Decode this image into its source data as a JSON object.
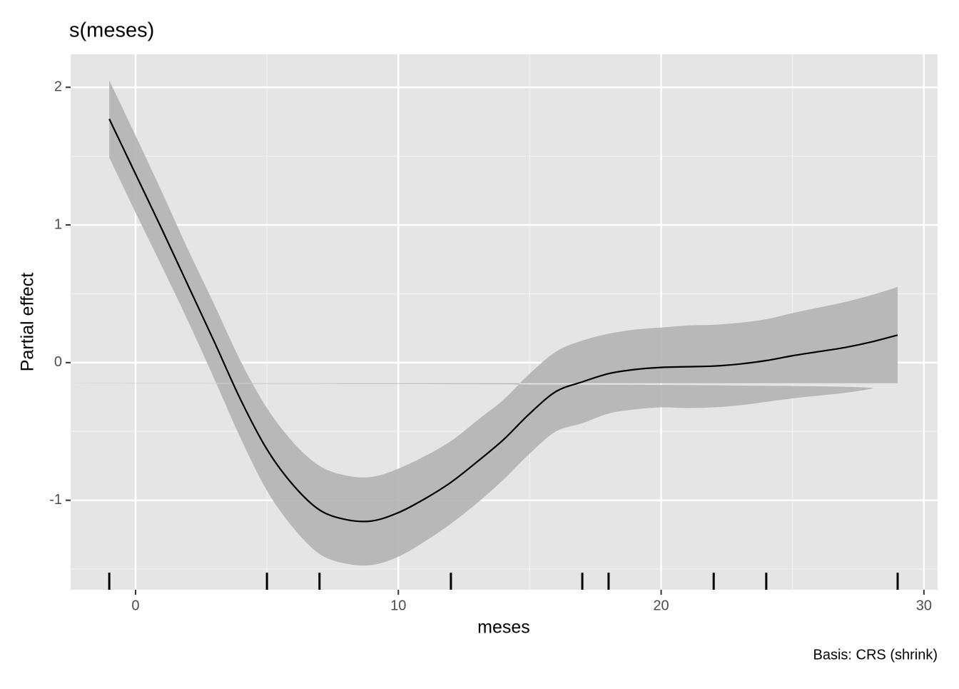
{
  "chart_data": {
    "type": "smooth",
    "title": "s(meses)",
    "xlabel": "meses",
    "ylabel": "Partial effect",
    "caption": "Basis: CRS (shrink)",
    "x": [
      -1,
      0,
      1,
      2,
      3,
      4,
      5,
      6,
      7,
      8,
      9,
      10,
      11,
      12,
      13,
      14,
      15,
      16,
      17,
      18,
      19,
      20,
      21,
      22,
      23,
      24,
      25,
      26,
      27,
      28,
      29
    ],
    "estimate": [
      1.77,
      1.37,
      0.97,
      0.56,
      0.15,
      -0.27,
      -0.63,
      -0.89,
      -1.07,
      -1.14,
      -1.15,
      -1.09,
      -0.99,
      -0.87,
      -0.72,
      -0.56,
      -0.37,
      -0.21,
      -0.14,
      -0.08,
      -0.05,
      -0.035,
      -0.03,
      -0.025,
      -0.01,
      0.015,
      0.05,
      0.08,
      0.11,
      0.15,
      0.2
    ],
    "lower": [
      1.49,
      1.09,
      0.7,
      0.3,
      -0.12,
      -0.55,
      -0.93,
      -1.2,
      -1.39,
      -1.46,
      -1.47,
      -1.41,
      -1.3,
      -1.17,
      -1.02,
      -0.85,
      -0.66,
      -0.5,
      -0.44,
      -0.37,
      -0.34,
      -0.325,
      -0.33,
      -0.325,
      -0.31,
      -0.285,
      -0.26,
      -0.24,
      -0.22,
      -0.19,
      -0.15
    ],
    "upper": [
      2.05,
      1.65,
      1.24,
      0.82,
      0.42,
      0.01,
      -0.33,
      -0.58,
      -0.75,
      -0.82,
      -0.83,
      -0.77,
      -0.68,
      -0.57,
      -0.42,
      -0.27,
      -0.08,
      0.08,
      0.16,
      0.21,
      0.24,
      0.255,
      0.27,
      0.275,
      0.29,
      0.315,
      0.36,
      0.4,
      0.44,
      0.49,
      0.55
    ],
    "rug": [
      -1,
      5,
      7,
      12,
      17,
      18,
      22,
      24,
      29
    ],
    "line_color": "#000000",
    "band_color": "#b3b3b3",
    "panel_color": "#e5e5e5",
    "xlim": [
      -2.47,
      30.52
    ],
    "ylim": [
      -1.65,
      2.24
    ],
    "xticks": [
      0,
      10,
      20,
      30
    ],
    "yticks": [
      -1,
      0,
      1,
      2
    ],
    "x_minor_ticks": [
      5,
      15,
      25
    ],
    "y_minor_ticks": [
      -1.5,
      -0.5,
      0.5,
      1.5
    ],
    "grid": true
  }
}
